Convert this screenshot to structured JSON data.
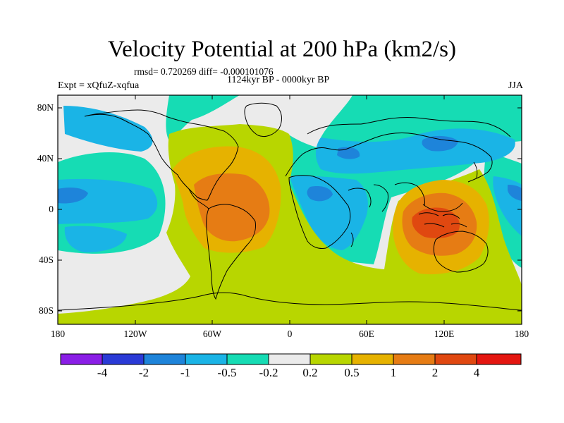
{
  "figure": {
    "title": "Velocity Potential at 200 hPa (km2/s)",
    "stats": "rmsd= 0.720269 diff= -0.000101076",
    "period": "1124kyr BP - 0000kyr BP",
    "experiment": "Expt = xQfuZ-xqfua",
    "season": "JJA"
  },
  "axes": {
    "y_ticks": [
      "80N",
      "40N",
      "0",
      "40S",
      "80S"
    ],
    "x_ticks": [
      "180",
      "120W",
      "60W",
      "0",
      "60E",
      "120E",
      "180"
    ]
  },
  "colorbar": {
    "labels": [
      "-4",
      "-2",
      "-1",
      "-0.5",
      "-0.2",
      "0.2",
      "0.5",
      "1",
      "2",
      "4"
    ],
    "colors": [
      "#8a1ee6",
      "#2a3ad6",
      "#1e84da",
      "#1ab4e6",
      "#16dcb4",
      "#ebebeb",
      "#b8d600",
      "#e6b200",
      "#e67c14",
      "#e04810",
      "#e41610"
    ]
  },
  "colors": {
    "ocean_land_base": "#ebebeb",
    "coastline": "#000000"
  }
}
